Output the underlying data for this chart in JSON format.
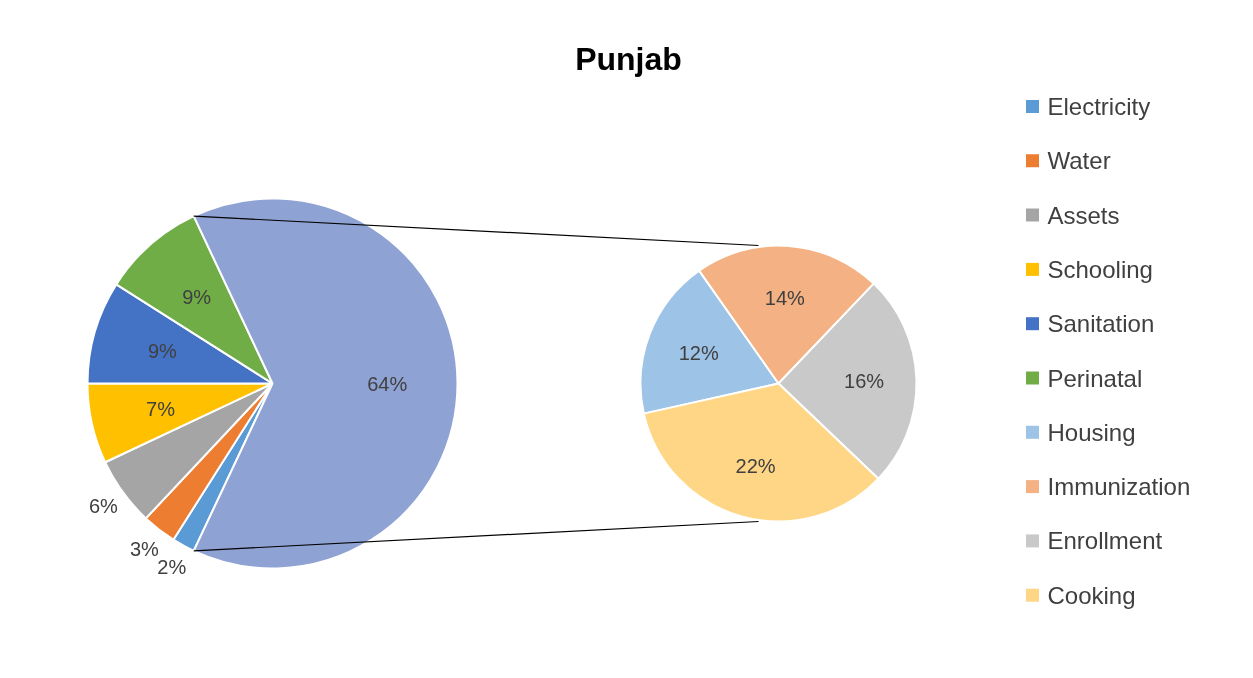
{
  "chart_data": [
    {
      "type": "pie",
      "title": "Punjab",
      "legend": "right",
      "categories": [
        "Electricity",
        "Water",
        "Assets",
        "Schooling",
        "Sanitation",
        "Perinatal",
        null
      ],
      "values": [
        2,
        3,
        6,
        7,
        9,
        9,
        64
      ],
      "colors": [
        "#5b9bd5",
        "#ed7d31",
        "#a5a5a5",
        "#ffc000",
        "#4472c4",
        "#70ad47",
        "#8fa2d4"
      ],
      "value_labels": [
        "2%",
        "3%",
        "6%",
        "7%",
        "9%",
        "9%",
        "64%"
      ]
    },
    {
      "type": "pie",
      "legend": "right",
      "categories": [
        "Housing",
        "Immunization",
        "Enrollment",
        "Cooking"
      ],
      "values": [
        12,
        14,
        16,
        22
      ],
      "colors": [
        "#9dc3e6",
        "#f4b183",
        "#c9c9c9",
        "#ffd685"
      ],
      "value_labels": [
        "12%",
        "14%",
        "16%",
        "22%"
      ]
    }
  ]
}
